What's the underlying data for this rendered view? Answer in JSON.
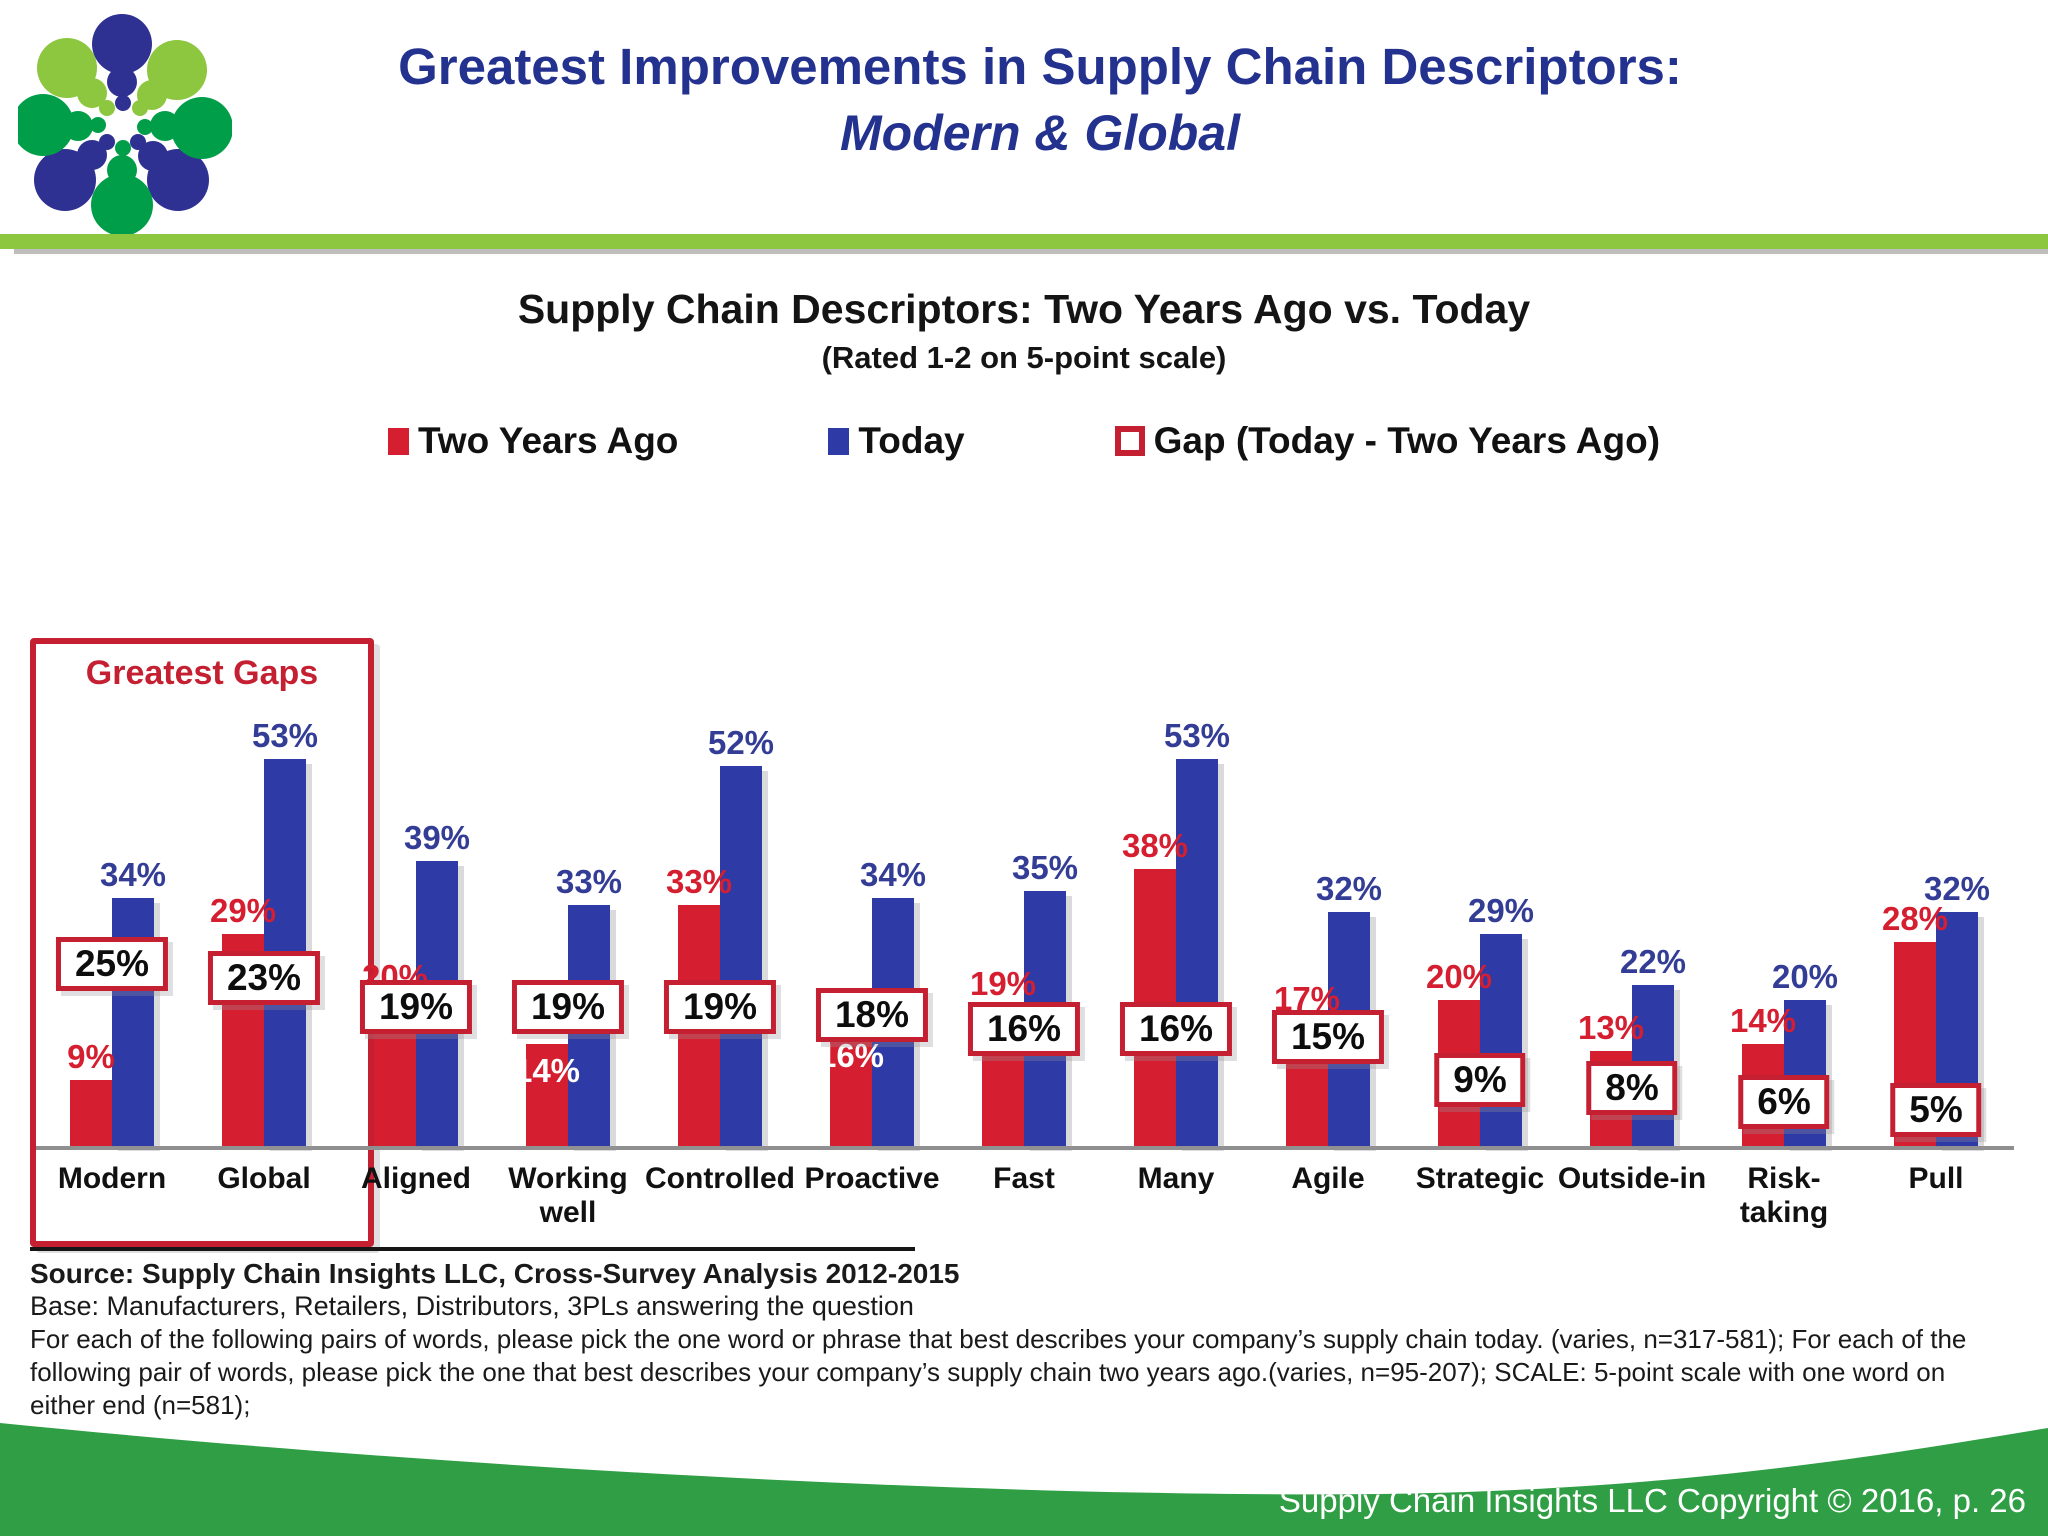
{
  "header": {
    "logo_name": "supply-chain-insights-dot-burst-logo",
    "title_line1": "Greatest Improvements in Supply Chain Descriptors:",
    "title_line2": "Modern & Global"
  },
  "chart": {
    "title": "Supply Chain Descriptors: Two Years Ago vs. Today",
    "subtitle": "(Rated 1-2 on 5-point scale)",
    "legend": [
      {
        "label": "Two Years Ago",
        "swatch": "solid-red"
      },
      {
        "label": "Today",
        "swatch": "solid-blue"
      },
      {
        "label": "Gap (Today - Two Years Ago)",
        "swatch": "red-outline"
      }
    ],
    "annotation_box_label": "Greatest Gaps"
  },
  "chart_data": {
    "type": "bar",
    "title": "Supply Chain Descriptors: Two Years Ago vs. Today",
    "subtitle": "(Rated 1-2 on 5-point scale)",
    "categories": [
      "Modern",
      "Global",
      "Aligned",
      "Working well",
      "Controlled",
      "Proactive",
      "Fast",
      "Many",
      "Agile",
      "Strategic",
      "Outside-in",
      "Risk-taking",
      "Pull"
    ],
    "category_labels": [
      "Modern",
      "Global",
      "Aligned",
      "Working\nwell",
      "Controlled",
      "Proactive",
      "Fast",
      "Many",
      "Agile",
      "Strategic",
      "Outside-in",
      "Risk-\ntaking",
      "Pull"
    ],
    "series": [
      {
        "name": "Two Years Ago",
        "color": "#d51f30",
        "values": [
          9,
          29,
          20,
          14,
          33,
          16,
          19,
          38,
          17,
          20,
          13,
          14,
          28
        ]
      },
      {
        "name": "Today",
        "color": "#2e3aa5",
        "values": [
          34,
          53,
          39,
          33,
          52,
          34,
          35,
          53,
          32,
          29,
          22,
          20,
          32
        ]
      },
      {
        "name": "Gap (Today - Two Years Ago)",
        "style": "boxed-label",
        "values": [
          25,
          23,
          19,
          19,
          19,
          18,
          16,
          16,
          15,
          9,
          8,
          6,
          5
        ]
      }
    ],
    "red_label_inside": [
      false,
      false,
      false,
      true,
      false,
      true,
      false,
      false,
      false,
      false,
      false,
      false,
      false
    ],
    "value_suffix": "%",
    "ylim": [
      0,
      60
    ],
    "grid": false,
    "legend_position": "top",
    "annotations": {
      "greatest_gaps": {
        "label": "Greatest Gaps",
        "categories": [
          "Modern",
          "Global"
        ]
      }
    }
  },
  "source": {
    "line1": "Source:  Supply Chain Insights LLC, Cross-Survey Analysis 2012-2015",
    "line2": "Base:  Manufacturers, Retailers, Distributors, 3PLs answering the question",
    "line3": "For each of the following pairs of words, please pick the one word or phrase that best describes your company’s supply chain today. (varies, n=317-581); For each of the",
    "line4": "following pair of words, please pick the one that best describes your company’s supply chain two years ago.(varies, n=95-207); SCALE: 5-point scale with one word on",
    "line5": "either end (n=581);"
  },
  "footer": {
    "copyright": "Supply Chain Insights LLC Copyright © 2016, p. 26"
  },
  "colors": {
    "red": "#d51f30",
    "blue": "#2e3aa5",
    "label_blue": "#333d96",
    "title_blue": "#23318f",
    "header_green": "#8dc63f",
    "footer_green": "#2f9e45",
    "box_border_red": "#c42032",
    "baseline_gray": "#8f8f8f",
    "logo_blue": "#2e3192",
    "logo_light_green": "#8dc63f",
    "logo_dark_green": "#009e49"
  }
}
